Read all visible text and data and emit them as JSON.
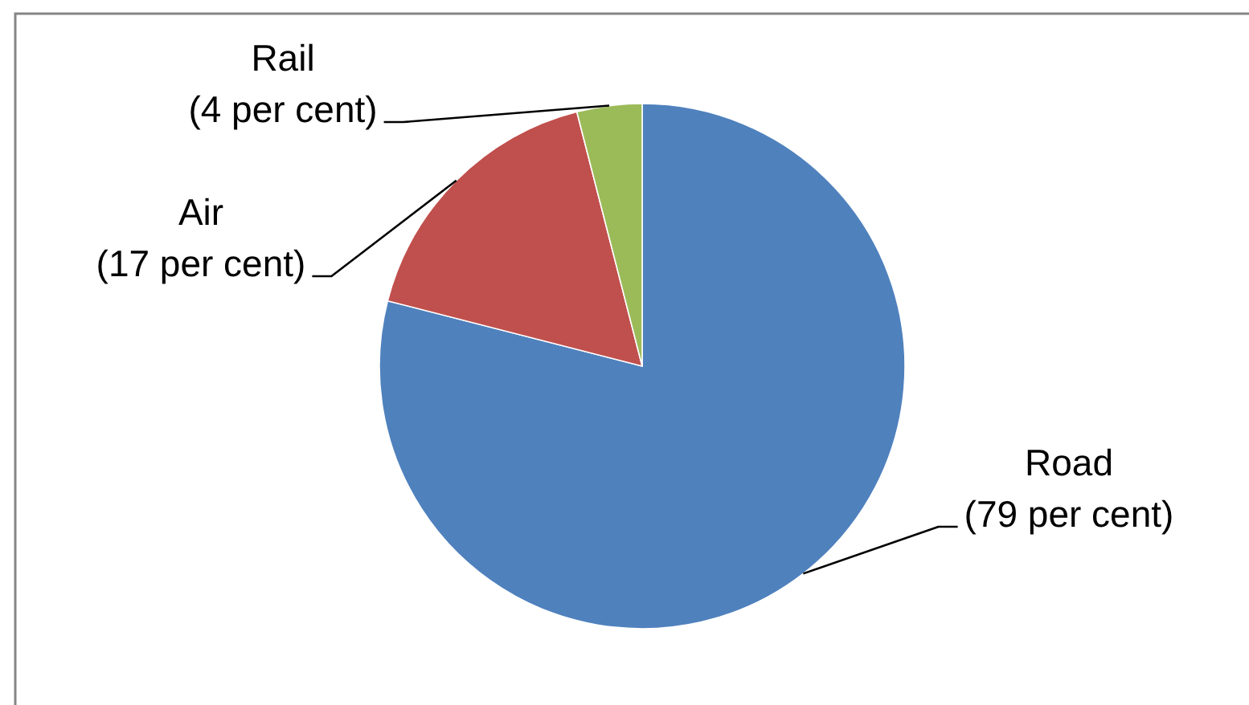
{
  "chart_data": {
    "type": "pie",
    "categories": [
      "Road",
      "Air",
      "Rail"
    ],
    "values": [
      79,
      17,
      4
    ],
    "colors": [
      "#4f81bd",
      "#c0504d",
      "#9bbb59"
    ],
    "value_labels": [
      "(79 per cent)",
      "(17 per cent)",
      "(4 per cent)"
    ]
  }
}
